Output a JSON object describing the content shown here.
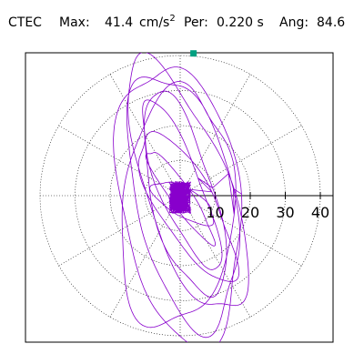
{
  "header": {
    "station": "CTEC",
    "max_label": "Max:",
    "max_value": "41.4",
    "max_unit": "cm/s",
    "max_unit_exp": "2",
    "per_label": "Per:",
    "per_value": "0.220 s",
    "ang_label": "Ang:",
    "ang_value": "84.6"
  },
  "colors": {
    "trace": "#8800cc",
    "marker": "#00a080",
    "grid": "#000000",
    "frame": "#000000"
  },
  "chart_data": {
    "type": "scatter",
    "title": "",
    "xlabel": "",
    "ylabel": "",
    "polar_grid": {
      "radial_ticks": [
        10,
        20,
        30,
        40
      ],
      "tick_labels": [
        "10",
        "20",
        "30",
        "40"
      ],
      "rmax": 40,
      "angle_step_deg": 30,
      "gridlines": "dotted"
    },
    "series": [
      {
        "orbits": [
          {
            "cx": 0,
            "cy": -2,
            "rx": 17,
            "ry": 40,
            "rot": 8
          },
          {
            "cx": 1,
            "cy": -1,
            "rx": 14,
            "ry": 37,
            "rot": 12
          },
          {
            "cx": -1,
            "cy": -4,
            "rx": 16,
            "ry": 34,
            "rot": -5
          },
          {
            "cx": 2,
            "cy": 2,
            "rx": 12,
            "ry": 38,
            "rot": 20
          },
          {
            "cx": 1,
            "cy": 0,
            "rx": 9,
            "ry": 30,
            "rot": 15
          },
          {
            "cx": 0,
            "cy": 3,
            "rx": 6,
            "ry": 26,
            "rot": 22
          },
          {
            "cx": 2,
            "cy": -3,
            "rx": 8,
            "ry": 24,
            "rot": 30
          },
          {
            "cx": 0,
            "cy": 0,
            "rx": 3,
            "ry": 16,
            "rot": 35
          },
          {
            "cx": 1,
            "cy": -2,
            "rx": 4,
            "ry": 10,
            "rot": 60
          }
        ],
        "core_jitter_radius": 3.5
      }
    ],
    "peak_marker": {
      "x": 3.8,
      "y": 40.6
    }
  }
}
